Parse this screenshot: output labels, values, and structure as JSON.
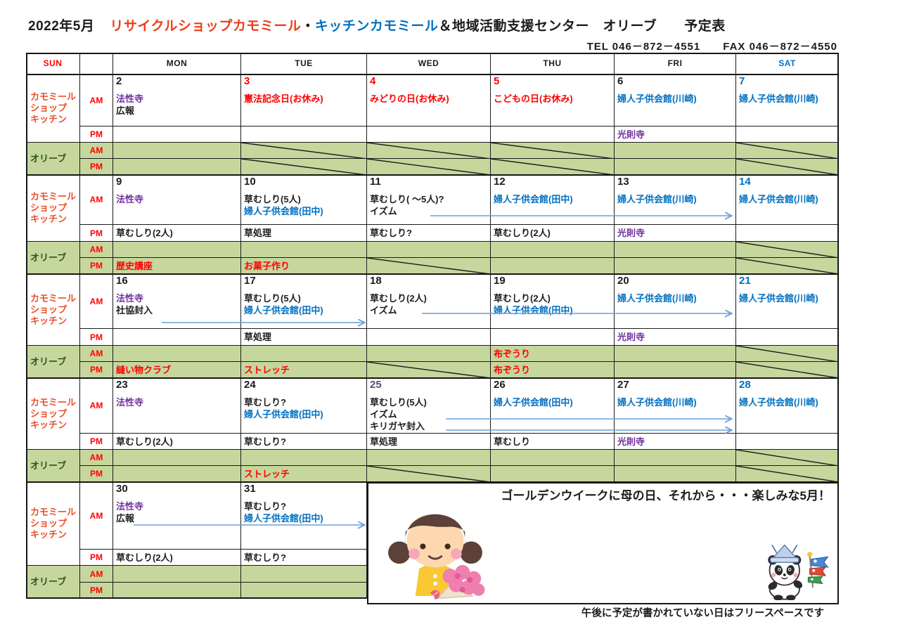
{
  "title": {
    "year_month": "2022年5月",
    "shop": "リサイクルショップカモミール",
    "dot": "・",
    "kitchen": "キッチンカモミール",
    "rest": "＆地域活動支援センター　オリーブ　　予定表"
  },
  "contact": "TEL 046－872－4551　　FAX 046－872－4550",
  "day_headers": [
    {
      "label": "SUN",
      "color": "red"
    },
    {
      "label": "",
      "color": "black"
    },
    {
      "label": "MON",
      "color": "black"
    },
    {
      "label": "TUE",
      "color": "black"
    },
    {
      "label": "WED",
      "color": "black"
    },
    {
      "label": "THU",
      "color": "black"
    },
    {
      "label": "FRI",
      "color": "black"
    },
    {
      "label": "SAT",
      "color": "blue"
    }
  ],
  "row_labels": {
    "kamomile": [
      "カモミール",
      "ショップ",
      "キッチン"
    ],
    "olive": "オリーブ",
    "am": "AM",
    "pm": "PM"
  },
  "weeks": [
    {
      "days": [
        {
          "day": "MON",
          "num": "2",
          "num_color": "black",
          "am": [
            [
              "法性寺",
              "purple"
            ],
            [
              "広報",
              "black"
            ]
          ],
          "pm": [],
          "olive_am": [],
          "olive_pm": [],
          "closed": ""
        },
        {
          "day": "TUE",
          "num": "3",
          "num_color": "red",
          "am": [
            [
              "憲法記念日(お休み)",
              "red"
            ]
          ],
          "pm": [],
          "olive_am": [],
          "olive_pm": [],
          "closed": "both"
        },
        {
          "day": "WED",
          "num": "4",
          "num_color": "red",
          "am": [
            [
              "みどりの日(お休み)",
              "red"
            ]
          ],
          "pm": [],
          "olive_am": [],
          "olive_pm": [],
          "closed": "both"
        },
        {
          "day": "THU",
          "num": "5",
          "num_color": "red",
          "am": [
            [
              "こどもの日(お休み)",
              "red"
            ]
          ],
          "pm": [],
          "olive_am": [],
          "olive_pm": [],
          "closed": "both"
        },
        {
          "day": "FRI",
          "num": "6",
          "num_color": "black",
          "am": [
            [
              "婦人子供会館(川崎)",
              "blue"
            ]
          ],
          "pm": [
            [
              "光則寺",
              "purple"
            ]
          ],
          "olive_am": [],
          "olive_pm": [],
          "closed": ""
        },
        {
          "day": "SAT",
          "num": "7",
          "num_color": "blue",
          "am": [
            [
              "婦人子供会館(川崎)",
              "blue"
            ]
          ],
          "pm": [],
          "olive_am": [],
          "olive_pm": [],
          "closed": "both"
        }
      ]
    },
    {
      "days": [
        {
          "day": "MON",
          "num": "9",
          "num_color": "black",
          "am": [
            [
              "法性寺",
              "purple"
            ]
          ],
          "pm": [
            [
              "草むしり(2人)",
              "black"
            ]
          ],
          "olive_am": [],
          "olive_pm": [
            [
              "歴史講座",
              "red"
            ]
          ],
          "closed": ""
        },
        {
          "day": "TUE",
          "num": "10",
          "num_color": "black",
          "am": [
            [
              "草むしり(5人)",
              "black"
            ],
            [
              "婦人子供会館(田中)",
              "blue"
            ]
          ],
          "pm": [
            [
              "草処理",
              "black"
            ]
          ],
          "olive_am": [],
          "olive_pm": [
            [
              "お菓子作り",
              "red"
            ]
          ],
          "closed": ""
        },
        {
          "day": "WED",
          "num": "11",
          "num_color": "black",
          "am": [
            [
              "草むしり( ～5人)?",
              "black"
            ],
            [
              "イズム",
              "black"
            ]
          ],
          "pm": [
            [
              "草むしり?",
              "black"
            ]
          ],
          "olive_am": [],
          "olive_pm": [],
          "closed": "pm"
        },
        {
          "day": "THU",
          "num": "12",
          "num_color": "black",
          "am": [
            [
              "婦人子供会館(田中)",
              "blue"
            ]
          ],
          "pm": [
            [
              "草むしり(2人)",
              "black"
            ]
          ],
          "olive_am": [],
          "olive_pm": [],
          "closed": ""
        },
        {
          "day": "FRI",
          "num": "13",
          "num_color": "black",
          "am": [
            [
              "婦人子供会館(川崎)",
              "blue"
            ]
          ],
          "pm": [
            [
              "光則寺",
              "purple"
            ]
          ],
          "olive_am": [],
          "olive_pm": [],
          "closed": ""
        },
        {
          "day": "SAT",
          "num": "14",
          "num_color": "blue",
          "am": [
            [
              "婦人子供会館(川崎)",
              "blue"
            ]
          ],
          "pm": [],
          "olive_am": [],
          "olive_pm": [],
          "closed": "both"
        }
      ]
    },
    {
      "days": [
        {
          "day": "MON",
          "num": "16",
          "num_color": "black",
          "am": [
            [
              "法性寺",
              "purple"
            ],
            [
              "社協封入",
              "black"
            ]
          ],
          "pm": [],
          "olive_am": [],
          "olive_pm": [
            [
              "縫い物クラブ",
              "red"
            ]
          ],
          "closed": ""
        },
        {
          "day": "TUE",
          "num": "17",
          "num_color": "black",
          "am": [
            [
              "草むしり(5人)",
              "black"
            ],
            [
              "婦人子供会館(田中)",
              "blue"
            ]
          ],
          "pm": [
            [
              "草処理",
              "black"
            ]
          ],
          "olive_am": [],
          "olive_pm": [
            [
              "ストレッチ",
              "red"
            ]
          ],
          "closed": ""
        },
        {
          "day": "WED",
          "num": "18",
          "num_color": "black",
          "am": [
            [
              "草むしり(2人)",
              "black"
            ],
            [
              "イズム",
              "black"
            ]
          ],
          "pm": [],
          "olive_am": [],
          "olive_pm": [],
          "closed": "pm"
        },
        {
          "day": "THU",
          "num": "19",
          "num_color": "black",
          "am": [
            [
              "草むしり(2人)",
              "black"
            ],
            [
              "婦人子供会館(田中)",
              "blue"
            ]
          ],
          "pm": [],
          "olive_am": [
            [
              "布ぞうり",
              "red"
            ]
          ],
          "olive_pm": [
            [
              "布ぞうり",
              "red"
            ]
          ],
          "closed": ""
        },
        {
          "day": "FRI",
          "num": "20",
          "num_color": "black",
          "am": [
            [
              "婦人子供会館(川崎)",
              "blue"
            ]
          ],
          "pm": [
            [
              "光則寺",
              "purple"
            ]
          ],
          "olive_am": [],
          "olive_pm": [],
          "closed": ""
        },
        {
          "day": "SAT",
          "num": "21",
          "num_color": "blue",
          "am": [
            [
              "婦人子供会館(川崎)",
              "blue"
            ]
          ],
          "pm": [],
          "olive_am": [],
          "olive_pm": [],
          "closed": "both"
        }
      ]
    },
    {
      "days": [
        {
          "day": "MON",
          "num": "23",
          "num_color": "black",
          "am": [
            [
              "法性寺",
              "purple"
            ]
          ],
          "pm": [
            [
              "草むしり(2人)",
              "black"
            ]
          ],
          "olive_am": [],
          "olive_pm": [],
          "closed": ""
        },
        {
          "day": "TUE",
          "num": "24",
          "num_color": "black",
          "am": [
            [
              "草むしり?",
              "black"
            ],
            [
              "婦人子供会館(田中)",
              "blue"
            ]
          ],
          "pm": [
            [
              "草むしり?",
              "black"
            ]
          ],
          "olive_am": [],
          "olive_pm": [
            [
              "ストレッチ",
              "red"
            ]
          ],
          "closed": ""
        },
        {
          "day": "WED",
          "num": "25",
          "num_color": "purple",
          "am": [
            [
              "草むしり(5人)",
              "black"
            ],
            [
              "イズム",
              "black"
            ],
            [
              "キリガヤ封入",
              "black"
            ]
          ],
          "pm": [
            [
              "草処理",
              "black"
            ]
          ],
          "olive_am": [],
          "olive_pm": [],
          "closed": "pm"
        },
        {
          "day": "THU",
          "num": "26",
          "num_color": "black",
          "am": [
            [
              "婦人子供会館(田中)",
              "blue"
            ]
          ],
          "pm": [
            [
              "草むしり",
              "black"
            ]
          ],
          "olive_am": [],
          "olive_pm": [],
          "closed": ""
        },
        {
          "day": "FRI",
          "num": "27",
          "num_color": "black",
          "am": [
            [
              "婦人子供会館(川崎)",
              "blue"
            ]
          ],
          "pm": [
            [
              "光則寺",
              "purple"
            ]
          ],
          "olive_am": [],
          "olive_pm": [],
          "closed": ""
        },
        {
          "day": "SAT",
          "num": "28",
          "num_color": "blue",
          "am": [
            [
              "婦人子供会館(川崎)",
              "blue"
            ]
          ],
          "pm": [],
          "olive_am": [],
          "olive_pm": [],
          "closed": "both"
        }
      ]
    },
    {
      "days": [
        {
          "day": "MON",
          "num": "30",
          "num_color": "black",
          "am": [
            [
              "法性寺",
              "purple"
            ],
            [
              "広報",
              "black"
            ]
          ],
          "pm": [
            [
              "草むしり(2人)",
              "black"
            ]
          ],
          "olive_am": [],
          "olive_pm": [],
          "closed": ""
        },
        {
          "day": "TUE",
          "num": "31",
          "num_color": "black",
          "am": [
            [
              "草むしり?",
              "black"
            ],
            [
              "婦人子供会館(田中)",
              "blue"
            ]
          ],
          "pm": [
            [
              "草むしり?",
              "black"
            ]
          ],
          "olive_am": [],
          "olive_pm": [],
          "closed": ""
        }
      ]
    }
  ],
  "arrows": [
    {
      "week": 2,
      "row": "am",
      "from_day": "WED",
      "to_day": "FRI"
    },
    {
      "week": 3,
      "row": "am",
      "from_day": "MON",
      "to_day": "TUE"
    },
    {
      "week": 3,
      "row": "am",
      "from_day": "WED",
      "to_day": "FRI"
    },
    {
      "week": 4,
      "row": "am",
      "from_day": "WED",
      "to_day": "FRI"
    },
    {
      "week": 4,
      "row": "am",
      "from_day": "WED",
      "to_day": "FRI"
    },
    {
      "week": 5,
      "row": "am",
      "from_day": "MON",
      "to_day": "TUE"
    }
  ],
  "footer": {
    "message": "ゴールデンウイークに母の日、それから・・・楽しみな5月！",
    "note": "午後に予定が書かれていない日はフリースペースです"
  },
  "icons": {
    "girl": "girl-with-carnation-bouquet-illustration",
    "panda": "panda-with-kabuto-helmet-and-koinobori-illustration"
  },
  "colors": {
    "red": "#ff0000",
    "blue": "#0070c0",
    "purple": "#7030a0",
    "day25_purple": "#60497a",
    "green_bg": "#c6d79e",
    "label_orange": "#e8512a",
    "title_red": "#ee3d18",
    "olive_green_text": "#2f4f1a",
    "arrow_blue": "#6f9fd8",
    "border": "#1c1c1c"
  }
}
